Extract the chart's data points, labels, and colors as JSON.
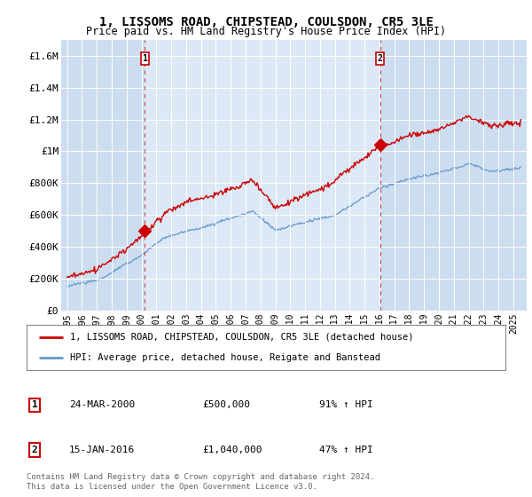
{
  "title": "1, LISSOMS ROAD, CHIPSTEAD, COULSDON, CR5 3LE",
  "subtitle": "Price paid vs. HM Land Registry's House Price Index (HPI)",
  "ylim": [
    0,
    1700000
  ],
  "yticks": [
    0,
    200000,
    400000,
    600000,
    800000,
    1000000,
    1200000,
    1400000,
    1600000
  ],
  "ytick_labels": [
    "£0",
    "£200K",
    "£400K",
    "£600K",
    "£800K",
    "£1M",
    "£1.2M",
    "£1.4M",
    "£1.6M"
  ],
  "sale1_date": "24-MAR-2000",
  "sale1_price": 500000,
  "sale1_hpi": "91%",
  "sale1_year": 2000.23,
  "sale2_date": "15-JAN-2016",
  "sale2_price": 1040000,
  "sale2_hpi": "47%",
  "sale2_year": 2016.04,
  "red_line_color": "#cc0000",
  "blue_line_color": "#6699cc",
  "dashed_line_color": "#cc0000",
  "highlight_bg": "#dce8f5",
  "plot_bg_color": "#ccddef",
  "legend_label1": "1, LISSOMS ROAD, CHIPSTEAD, COULSDON, CR5 3LE (detached house)",
  "legend_label2": "HPI: Average price, detached house, Reigate and Banstead",
  "footer": "Contains HM Land Registry data © Crown copyright and database right 2024.\nThis data is licensed under the Open Government Licence v3.0.",
  "fig_bg_color": "#ffffff"
}
